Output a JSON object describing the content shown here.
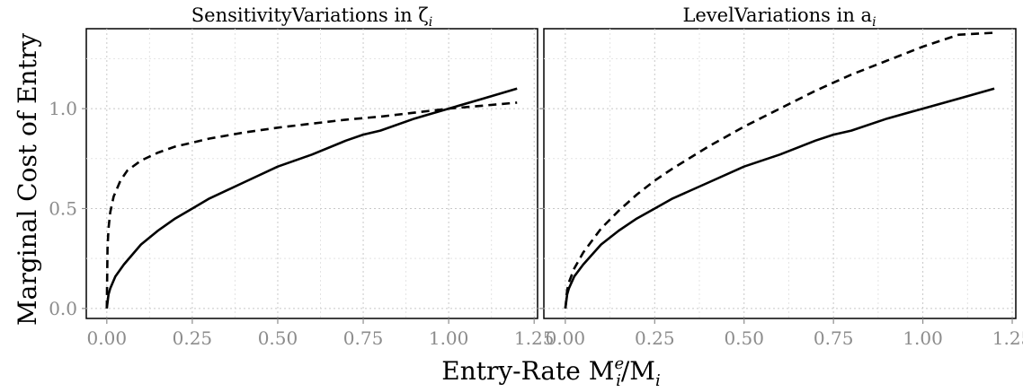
{
  "chart_data": [
    {
      "type": "line",
      "title": "SensitivityVariations in ζ",
      "title_sub": "i",
      "xlim": [
        -0.06,
        1.26
      ],
      "ylim": [
        -0.05,
        1.4
      ],
      "x_ticks": [
        0,
        0.25,
        0.5,
        0.75,
        1.0,
        1.25
      ],
      "x_tick_labels": [
        "0.00",
        "0.25",
        "0.50",
        "0.75",
        "1.00",
        "1.25"
      ],
      "y_ticks": [
        0,
        0.5,
        1.0
      ],
      "y_tick_labels": [
        "0.0",
        "0.5",
        "1.0"
      ],
      "grid": true,
      "series": [
        {
          "style": "solid",
          "x": [
            0,
            0.005,
            0.01,
            0.025,
            0.05,
            0.1,
            0.15,
            0.2,
            0.25,
            0.3,
            0.4,
            0.5,
            0.6,
            0.7,
            0.75,
            0.8,
            0.9,
            1.0,
            1.1,
            1.2
          ],
          "y": [
            0,
            0.07,
            0.1,
            0.16,
            0.22,
            0.32,
            0.39,
            0.45,
            0.5,
            0.55,
            0.63,
            0.71,
            0.77,
            0.84,
            0.87,
            0.89,
            0.95,
            1.0,
            1.05,
            1.1
          ]
        },
        {
          "style": "dashed",
          "x": [
            0,
            0.002,
            0.005,
            0.01,
            0.02,
            0.04,
            0.06,
            0.1,
            0.15,
            0.2,
            0.25,
            0.3,
            0.4,
            0.5,
            0.6,
            0.7,
            0.8,
            0.9,
            1.0,
            1.1,
            1.2
          ],
          "y": [
            0,
            0.3,
            0.4,
            0.48,
            0.56,
            0.64,
            0.69,
            0.74,
            0.78,
            0.81,
            0.83,
            0.85,
            0.88,
            0.905,
            0.925,
            0.945,
            0.96,
            0.98,
            1.0,
            1.015,
            1.03
          ]
        }
      ]
    },
    {
      "type": "line",
      "title": "LevelVariations in a",
      "title_sub": "i",
      "xlim": [
        -0.06,
        1.26
      ],
      "ylim": [
        -0.05,
        1.4
      ],
      "x_ticks": [
        0,
        0.25,
        0.5,
        0.75,
        1.0,
        1.25
      ],
      "x_tick_labels": [
        "0.00",
        "0.25",
        "0.50",
        "0.75",
        "1.00",
        "1.25"
      ],
      "y_ticks": [
        0,
        0.5,
        1.0
      ],
      "y_tick_labels": [],
      "grid": true,
      "series": [
        {
          "style": "solid",
          "x": [
            0,
            0.005,
            0.01,
            0.025,
            0.05,
            0.1,
            0.15,
            0.2,
            0.25,
            0.3,
            0.4,
            0.5,
            0.6,
            0.7,
            0.75,
            0.8,
            0.9,
            1.0,
            1.1,
            1.2
          ],
          "y": [
            0,
            0.07,
            0.1,
            0.16,
            0.22,
            0.32,
            0.39,
            0.45,
            0.5,
            0.55,
            0.63,
            0.71,
            0.77,
            0.84,
            0.87,
            0.89,
            0.95,
            1.0,
            1.05,
            1.1
          ]
        },
        {
          "style": "dashed",
          "x": [
            0,
            0.005,
            0.01,
            0.025,
            0.05,
            0.1,
            0.15,
            0.2,
            0.25,
            0.3,
            0.4,
            0.5,
            0.6,
            0.7,
            0.75,
            0.8,
            0.9,
            1.0,
            1.1,
            1.2
          ],
          "y": [
            0,
            0.09,
            0.13,
            0.2,
            0.28,
            0.4,
            0.49,
            0.57,
            0.64,
            0.7,
            0.81,
            0.91,
            1.0,
            1.09,
            1.13,
            1.17,
            1.24,
            1.31,
            1.37,
            1.38
          ]
        }
      ]
    }
  ],
  "shared": {
    "xlabel_main": "Entry-Rate M",
    "xlabel_sup": "e",
    "xlabel_sub1": "i",
    "xlabel_mid": "/M",
    "xlabel_sub2": "i",
    "ylabel": "Marginal Cost of Entry"
  }
}
